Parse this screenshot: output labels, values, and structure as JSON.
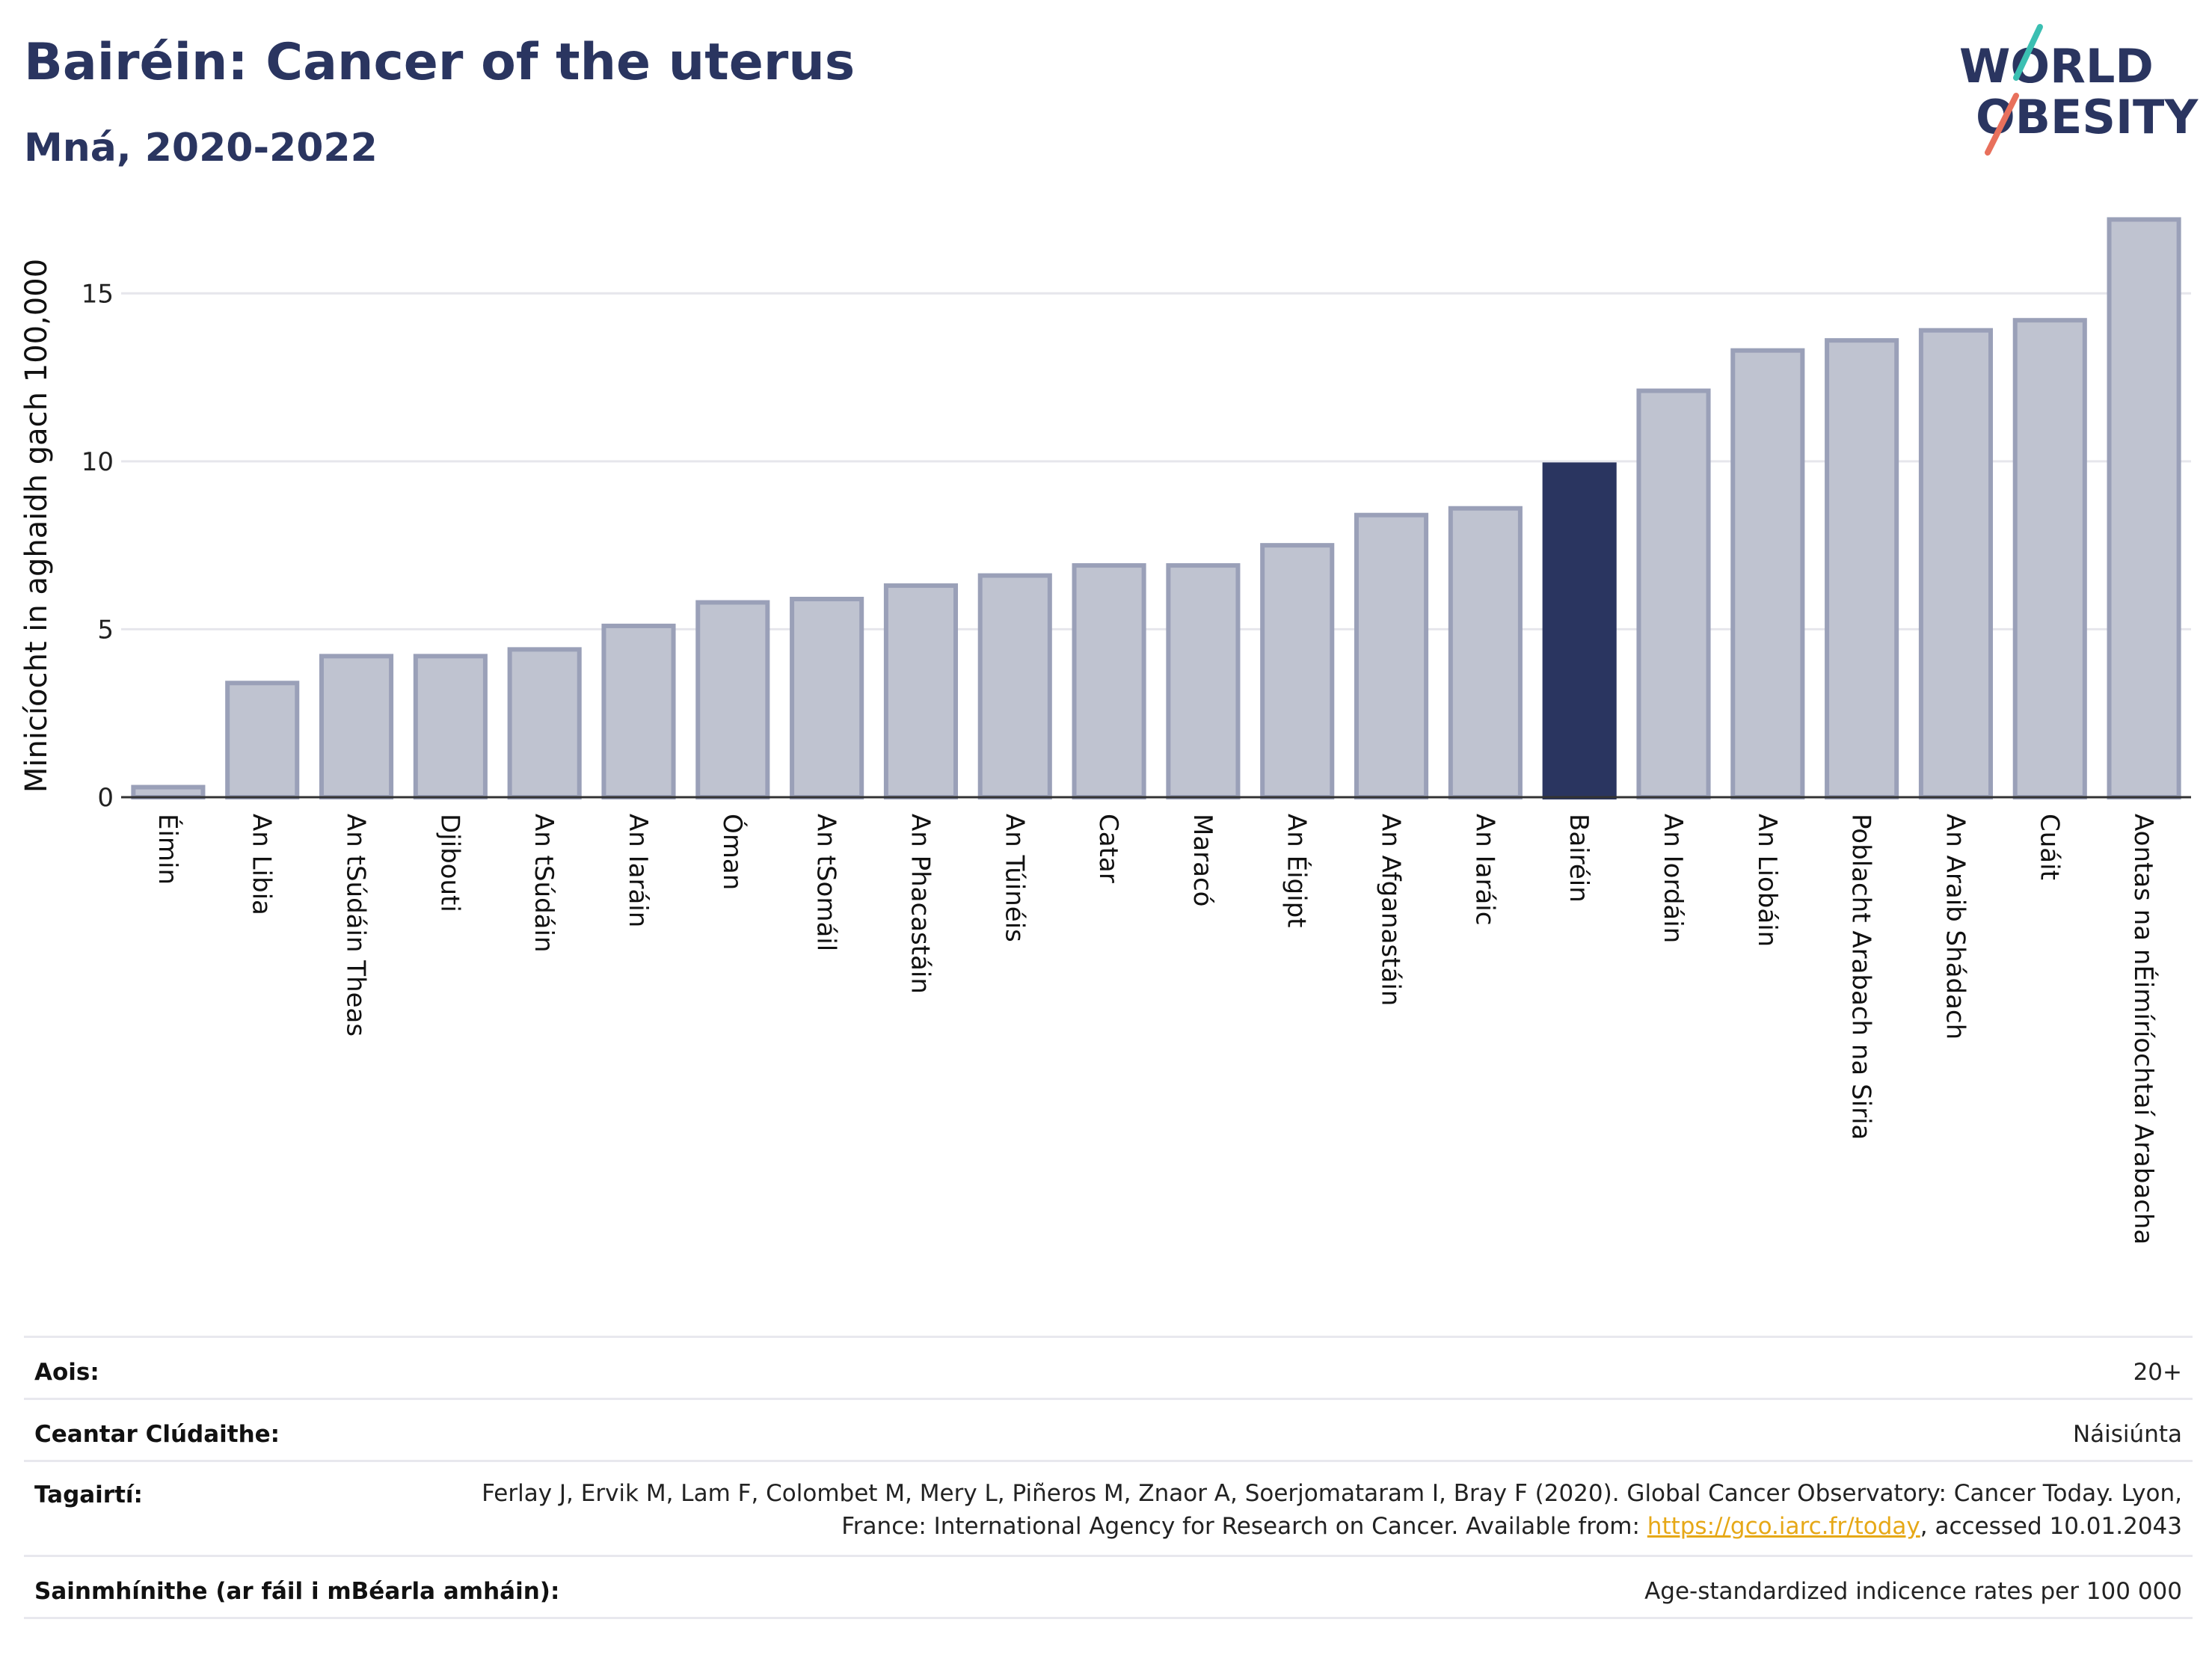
{
  "header": {
    "title": "Bairéin: Cancer of the uterus",
    "subtitle": "Mná, 2020-2022"
  },
  "logo": {
    "line1": "WORLD",
    "line2": "OBESITY"
  },
  "chart_data": {
    "type": "bar",
    "ylabel": "Minicíocht in aghaidh gach 100,000",
    "xlabel": "",
    "ylim": [
      0,
      17.5
    ],
    "yticks": [
      0,
      5,
      10,
      15
    ],
    "highlight": "Bairéin",
    "colors": {
      "bar": "#bfc3d0",
      "bar_edge": "#9aa0b8",
      "highlight": "#2a3560"
    },
    "categories": [
      "Éimin",
      "An Libia",
      "An tSúdáin Theas",
      "Djibouti",
      "An tSúdáin",
      "An Iaráin",
      "Óman",
      "An tSomáil",
      "An Phacastáin",
      "An Túinéis",
      "Catar",
      "Maracó",
      "An Éigipt",
      "An Afganastáin",
      "An Iaráic",
      "Bairéin",
      "An Iordáin",
      "An Liobáin",
      "Poblacht Arabach na Siria",
      "An Araib Shádach",
      "Cuáit",
      "Aontas na nÉimíríochtaí Arabacha"
    ],
    "values": [
      0.3,
      3.4,
      4.2,
      4.2,
      4.4,
      5.1,
      5.8,
      5.9,
      6.3,
      6.6,
      6.9,
      6.9,
      7.5,
      8.4,
      8.6,
      9.9,
      12.1,
      13.3,
      13.6,
      13.9,
      14.2,
      17.2
    ]
  },
  "info": {
    "age_label": "Aois:",
    "age_value": "20+",
    "area_label": "Ceantar Clúdaithe:",
    "area_value": "Náisiúnta",
    "ref_label": "Tagairtí:",
    "ref_text_1": "Ferlay J, Ervik M, Lam F, Colombet M, Mery L, Piñeros M, Znaor A, Soerjomataram I, Bray F (2020). Global Cancer Observatory: Cancer Today. Lyon, France: International Agency for Research on Cancer. Available from: ",
    "ref_link": "https://gco.iarc.fr/today",
    "ref_text_2": ", accessed 10.01.2043",
    "def_label": "Sainmhínithe (ar fáil i mBéarla amháin):",
    "def_value": "Age-standardized indicence rates per 100 000"
  }
}
